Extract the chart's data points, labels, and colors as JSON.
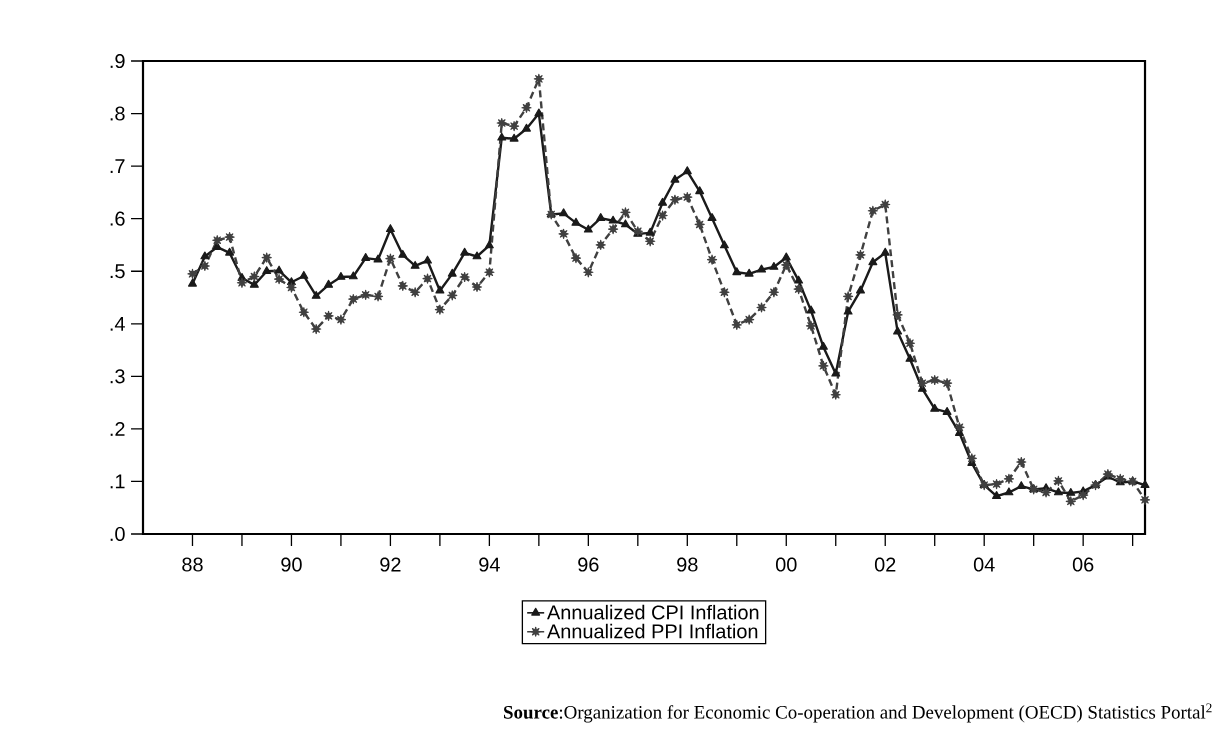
{
  "chart_data": {
    "type": "line",
    "x": [
      1988,
      1988.25,
      1988.5,
      1988.75,
      1989,
      1989.25,
      1989.5,
      1989.75,
      1990,
      1990.25,
      1990.5,
      1990.75,
      1991,
      1991.25,
      1991.5,
      1991.75,
      1992,
      1992.25,
      1992.5,
      1992.75,
      1993,
      1993.25,
      1993.5,
      1993.75,
      1994,
      1994.25,
      1994.5,
      1994.75,
      1995,
      1995.25,
      1995.5,
      1995.75,
      1996,
      1996.25,
      1996.5,
      1996.75,
      1997,
      1997.25,
      1997.5,
      1997.75,
      1998,
      1998.25,
      1998.5,
      1998.75,
      1999,
      1999.25,
      1999.5,
      1999.75,
      2000,
      2000.25,
      2000.5,
      2000.75,
      2001,
      2001.25,
      2001.5,
      2001.75,
      2002,
      2002.25,
      2002.5,
      2002.75,
      2003,
      2003.25,
      2003.5,
      2003.75,
      2004,
      2004.25,
      2004.5,
      2004.75,
      2005,
      2005.25,
      2005.5,
      2005.75,
      2006,
      2006.25,
      2006.5,
      2006.75,
      2007,
      2007.25
    ],
    "series": [
      {
        "name": "Annualized CPI Inflation",
        "color": "#1a1a1a",
        "marker": "triangle",
        "line_style": "solid",
        "values": [
          0.476,
          0.528,
          0.546,
          0.535,
          0.487,
          0.474,
          0.5,
          0.501,
          0.479,
          0.491,
          0.453,
          0.474,
          0.489,
          0.49,
          0.525,
          0.522,
          0.58,
          0.531,
          0.51,
          0.52,
          0.463,
          0.495,
          0.535,
          0.528,
          0.549,
          0.754,
          0.752,
          0.771,
          0.8,
          0.608,
          0.61,
          0.592,
          0.579,
          0.601,
          0.596,
          0.589,
          0.571,
          0.573,
          0.63,
          0.674,
          0.69,
          0.652,
          0.601,
          0.549,
          0.498,
          0.495,
          0.503,
          0.508,
          0.526,
          0.482,
          0.425,
          0.356,
          0.305,
          0.423,
          0.463,
          0.517,
          0.535,
          0.385,
          0.333,
          0.276,
          0.238,
          0.232,
          0.192,
          0.135,
          0.093,
          0.072,
          0.079,
          0.091,
          0.085,
          0.087,
          0.079,
          0.078,
          0.081,
          0.093,
          0.109,
          0.098,
          0.1,
          0.093
        ]
      },
      {
        "name": "Annualized PPI Inflation",
        "color": "#404040",
        "marker": "star",
        "line_style": "dashed",
        "values": [
          0.495,
          0.51,
          0.559,
          0.565,
          0.478,
          0.49,
          0.526,
          0.485,
          0.469,
          0.422,
          0.39,
          0.415,
          0.408,
          0.447,
          0.455,
          0.452,
          0.524,
          0.472,
          0.46,
          0.486,
          0.427,
          0.454,
          0.489,
          0.47,
          0.498,
          0.782,
          0.776,
          0.811,
          0.866,
          0.608,
          0.571,
          0.525,
          0.498,
          0.55,
          0.58,
          0.612,
          0.576,
          0.557,
          0.606,
          0.636,
          0.641,
          0.589,
          0.522,
          0.46,
          0.398,
          0.408,
          0.431,
          0.46,
          0.512,
          0.466,
          0.396,
          0.32,
          0.265,
          0.452,
          0.531,
          0.615,
          0.627,
          0.417,
          0.363,
          0.287,
          0.293,
          0.287,
          0.203,
          0.144,
          0.093,
          0.095,
          0.105,
          0.137,
          0.085,
          0.079,
          0.101,
          0.062,
          0.074,
          0.093,
          0.114,
          0.105,
          0.1,
          0.065
        ]
      }
    ],
    "xlim": [
      1987,
      2007.25
    ],
    "xticks": [
      {
        "value": 1988,
        "label": "88"
      },
      {
        "value": 1989,
        "label": null
      },
      {
        "value": 1990,
        "label": "90"
      },
      {
        "value": 1991,
        "label": null
      },
      {
        "value": 1992,
        "label": "92"
      },
      {
        "value": 1993,
        "label": null
      },
      {
        "value": 1994,
        "label": "94"
      },
      {
        "value": 1995,
        "label": null
      },
      {
        "value": 1996,
        "label": "96"
      },
      {
        "value": 1997,
        "label": null
      },
      {
        "value": 1998,
        "label": "98"
      },
      {
        "value": 1999,
        "label": null
      },
      {
        "value": 2000,
        "label": "00"
      },
      {
        "value": 2001,
        "label": null
      },
      {
        "value": 2002,
        "label": "02"
      },
      {
        "value": 2003,
        "label": null
      },
      {
        "value": 2004,
        "label": "04"
      },
      {
        "value": 2005,
        "label": null
      },
      {
        "value": 2006,
        "label": "06"
      },
      {
        "value": 2007,
        "label": null
      }
    ],
    "ylim": [
      0,
      0.9
    ],
    "yticks": [
      {
        "value": 0,
        "label": ".0"
      },
      {
        "value": 0.1,
        "label": ".1"
      },
      {
        "value": 0.2,
        "label": ".2"
      },
      {
        "value": 0.3,
        "label": ".3"
      },
      {
        "value": 0.4,
        "label": ".4"
      },
      {
        "value": 0.5,
        "label": ".5"
      },
      {
        "value": 0.6,
        "label": ".6"
      },
      {
        "value": 0.7,
        "label": ".7"
      },
      {
        "value": 0.8,
        "label": ".8"
      },
      {
        "value": 0.9,
        "label": ".9"
      }
    ],
    "legend": "bottom",
    "annotations": [
      "**Source**:Organization for Economic Co-operation and Development (OECD) Statistics Portal$^{2}$"
    ]
  }
}
